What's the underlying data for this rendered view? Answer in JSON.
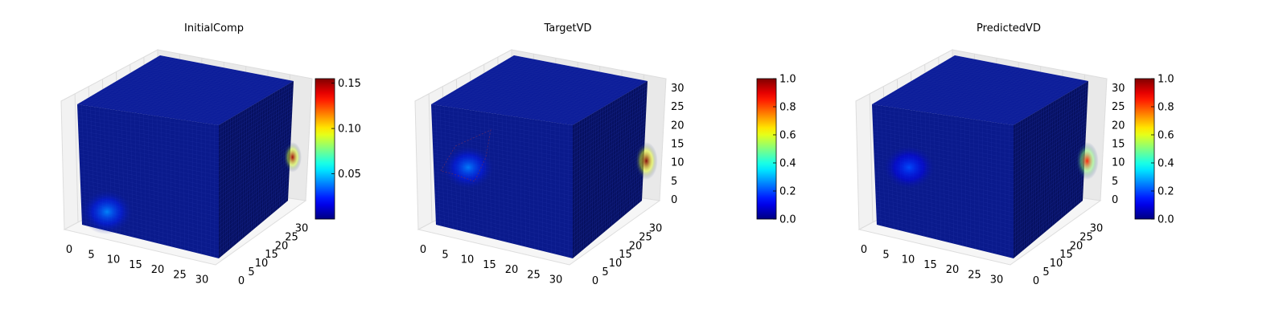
{
  "chart_data": [
    {
      "type": "heatmap",
      "plot_kind": "3d-voxel",
      "title": "InitialComp",
      "colormap": "jet",
      "x_ticks": [
        "0",
        "5",
        "10",
        "15",
        "20",
        "25",
        "30"
      ],
      "y_ticks": [
        "0",
        "5",
        "10",
        "15",
        "20",
        "25",
        "30"
      ],
      "z_ticks": [],
      "colorbar": {
        "range": [
          0.0,
          0.155
        ],
        "ticks": [
          "0.05",
          "0.10",
          "0.15"
        ],
        "tick_values": [
          0.05,
          0.1,
          0.15
        ]
      },
      "blobs": [
        {
          "face": "front",
          "center": [
            6,
            5
          ],
          "radius": 5,
          "value": 0.04
        },
        {
          "face": "right",
          "center": [
            32,
            17
          ],
          "radius": 4,
          "value": 0.15
        }
      ]
    },
    {
      "type": "heatmap",
      "plot_kind": "3d-voxel",
      "title": "TargetVD",
      "colormap": "jet",
      "x_ticks": [
        "0",
        "5",
        "10",
        "15",
        "20",
        "25",
        "30"
      ],
      "y_ticks": [
        "0",
        "5",
        "10",
        "15",
        "20",
        "25",
        "30"
      ],
      "z_ticks": [
        "0",
        "5",
        "10",
        "15",
        "20",
        "25",
        "30"
      ],
      "colorbar": {
        "range": [
          0.0,
          1.0
        ],
        "ticks": [
          "0.0",
          "0.2",
          "0.4",
          "0.6",
          "0.8",
          "1.0"
        ],
        "tick_values": [
          0.0,
          0.2,
          0.4,
          0.6,
          0.8,
          1.0
        ]
      },
      "blobs": [
        {
          "face": "front",
          "center": [
            8,
            17
          ],
          "radius": 5,
          "value": 0.25
        },
        {
          "face": "right",
          "center": [
            32,
            16
          ],
          "radius": 5,
          "value": 1.0
        }
      ]
    },
    {
      "type": "heatmap",
      "plot_kind": "3d-voxel",
      "title": "PredictedVD",
      "colormap": "jet",
      "x_ticks": [
        "0",
        "5",
        "10",
        "15",
        "20",
        "25",
        "30"
      ],
      "y_ticks": [
        "0",
        "5",
        "10",
        "15",
        "20",
        "25",
        "30"
      ],
      "z_ticks": [
        "0",
        "5",
        "10",
        "15",
        "20",
        "25",
        "30"
      ],
      "colorbar": {
        "range": [
          0.0,
          1.0
        ],
        "ticks": [
          "0.0",
          "0.2",
          "0.4",
          "0.6",
          "0.8",
          "1.0"
        ],
        "tick_values": [
          0.0,
          0.2,
          0.4,
          0.6,
          0.8,
          1.0
        ]
      },
      "blobs": [
        {
          "face": "front",
          "center": [
            8,
            17
          ],
          "radius": 5,
          "value": 0.2
        },
        {
          "face": "right",
          "center": [
            32,
            16
          ],
          "radius": 5,
          "value": 0.85
        }
      ]
    }
  ],
  "colors": {
    "cube_front": "#0a1a8c",
    "cube_top": "#0c1d9a",
    "cube_right": "#061061",
    "grid_line": "#1f2fa3",
    "pane_left": "#f2f2f2",
    "pane_back": "#e9e9e9",
    "pane_floor": "#f6f6f6",
    "axis_line": "#444444"
  }
}
